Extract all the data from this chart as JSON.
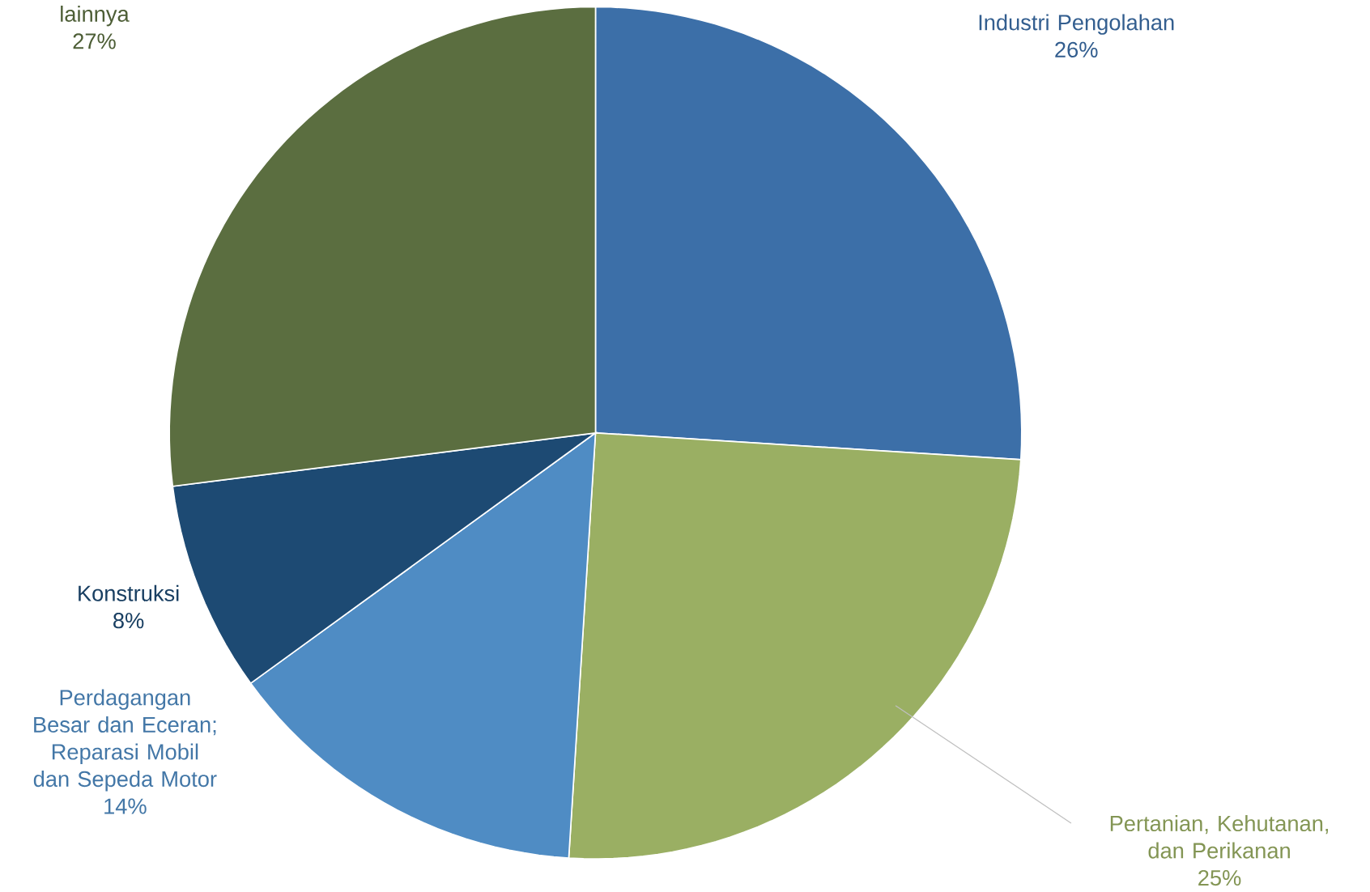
{
  "chart_data": {
    "type": "pie",
    "categories": [
      "Industri Pengolahan",
      "Pertanian, Kehutanan, dan Perikanan",
      "Perdagangan Besar dan Eceran; Reparasi Mobil dan Sepeda Motor",
      "Konstruksi",
      "lainnya"
    ],
    "values": [
      26,
      25,
      14,
      8,
      27
    ],
    "colors": [
      "#3c6fa8",
      "#9aaf63",
      "#4f8cc4",
      "#1d4a73",
      "#5b6e40"
    ],
    "value_labels": [
      "26%",
      "25%",
      "14%",
      "8%",
      "27%"
    ]
  }
}
